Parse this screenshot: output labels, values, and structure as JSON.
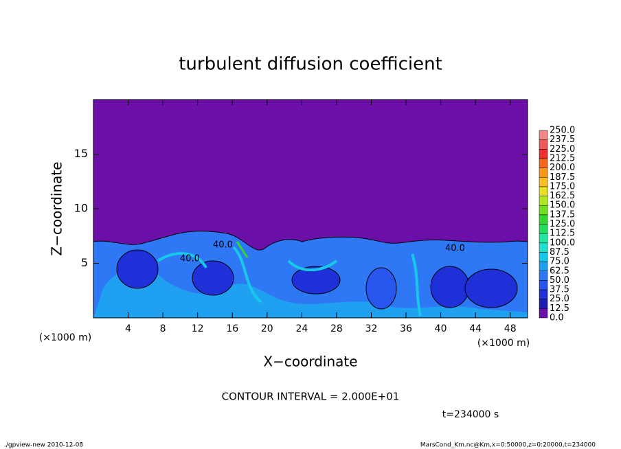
{
  "chart_data": {
    "type": "contour",
    "title": "turbulent diffusion coefficient",
    "xlabel": "X−coordinate",
    "ylabel": "Z−coordinate",
    "xunit": "(×1000 m)",
    "yunit": "(×1000 m)",
    "xlim": [
      0,
      50
    ],
    "xticks": [
      4,
      8,
      12,
      16,
      20,
      24,
      28,
      32,
      36,
      40,
      44,
      48
    ],
    "ylim": [
      0,
      20
    ],
    "yticks": [
      5,
      10,
      15
    ],
    "colorbar": {
      "levels": [
        {
          "value": 0,
          "label": "0.0"
        },
        {
          "value": 12.5,
          "label": "12.5"
        },
        {
          "value": 25,
          "label": "25.0"
        },
        {
          "value": 37.5,
          "label": "37.5"
        },
        {
          "value": 50,
          "label": "50.0"
        },
        {
          "value": 62.5,
          "label": "62.5"
        },
        {
          "value": 75,
          "label": "75.0"
        },
        {
          "value": 87.5,
          "label": "87.5"
        },
        {
          "value": 100,
          "label": "100.0"
        },
        {
          "value": 112.5,
          "label": "112.5"
        },
        {
          "value": 125,
          "label": "125.0"
        },
        {
          "value": 137.5,
          "label": "137.5"
        },
        {
          "value": 150,
          "label": "150.0"
        },
        {
          "value": 162.5,
          "label": "162.5"
        },
        {
          "value": 175,
          "label": "175.0"
        },
        {
          "value": 187.5,
          "label": "187.5"
        },
        {
          "value": 200,
          "label": "200.0"
        },
        {
          "value": 212.5,
          "label": "212.5"
        },
        {
          "value": 225,
          "label": "225.0"
        },
        {
          "value": 237.5,
          "label": "237.5"
        },
        {
          "value": 250,
          "label": "250.0"
        }
      ],
      "colors": [
        "#6b0fa8",
        "#1c1cb4",
        "#2030d8",
        "#2855ee",
        "#2f78f5",
        "#1fa0f0",
        "#18c8e8",
        "#20e0d0",
        "#20e8a0",
        "#20e060",
        "#30d830",
        "#70e020",
        "#b0e820",
        "#e8e020",
        "#f8c020",
        "#f89818",
        "#f86818",
        "#f03030",
        "#f05858",
        "#f08888"
      ]
    },
    "contour_labels": [
      "40.0",
      "40.0",
      "40.0"
    ],
    "contour_interval": "CONTOUR INTERVAL = 2.000E+01",
    "time": "t=234000 s",
    "footer_left": "./gpview-new  2010-12-08",
    "footer_right": "MarsCond_Km.nc@Km,x=0:50000,z=0:20000,t=234000"
  }
}
